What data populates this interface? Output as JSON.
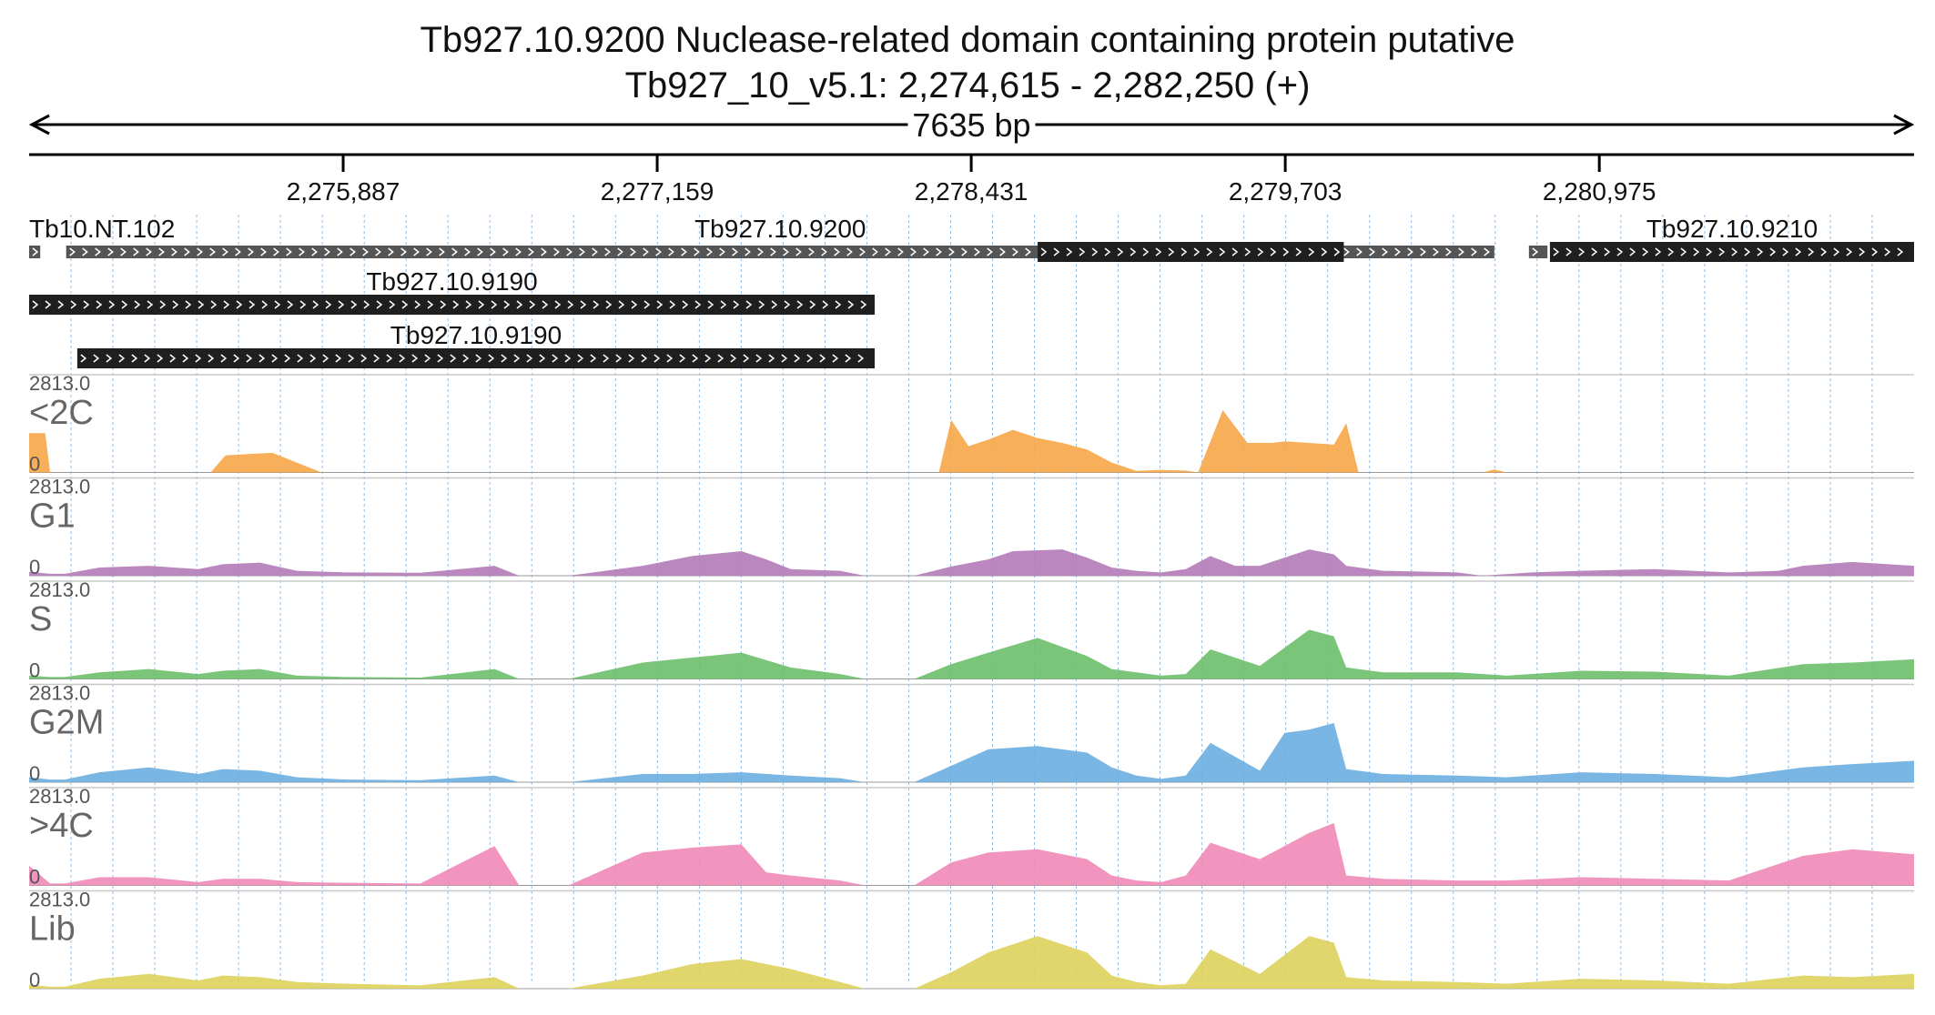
{
  "header": {
    "title": "Tb927.10.9200  Nuclease-related domain containing protein  putative",
    "location": "Tb927_10_v5.1: 2,274,615 - 2,282,250 (+)",
    "span_label": "7635 bp"
  },
  "colors": {
    "gene_fill": "#1f1f1f",
    "transcript_fill": "#555555",
    "grid": "#7fb2e0",
    "track_divider": "#c8c8c8"
  },
  "chart_data": {
    "type": "area",
    "xlim": [
      2274615,
      2282250
    ],
    "ylim": [
      0,
      2813.0
    ],
    "ruler_ticks": [
      {
        "position": 2275887,
        "label": "2,275,887"
      },
      {
        "position": 2277159,
        "label": "2,277,159"
      },
      {
        "position": 2278431,
        "label": "2,278,431"
      },
      {
        "position": 2279703,
        "label": "2,279,703"
      },
      {
        "position": 2280975,
        "label": "2,280,975"
      }
    ],
    "features": [
      {
        "name": "Tb10.NT.102",
        "row": 0,
        "start": 2274615,
        "end": 2274660,
        "style": "transcript"
      },
      {
        "name": "Tb927.10.9200",
        "row": 0,
        "start": 2274765,
        "end": 2280550,
        "style": "transcript"
      },
      {
        "name": "",
        "row": 0,
        "start": 2278700,
        "end": 2279940,
        "style": "gene"
      },
      {
        "name": "",
        "row": 0,
        "start": 2280690,
        "end": 2280765,
        "style": "transcript"
      },
      {
        "name": "Tb927.10.9210",
        "row": 0,
        "start": 2280775,
        "end": 2282250,
        "style": "gene"
      },
      {
        "name": "Tb927.10.9190",
        "row": 1,
        "start": 2274615,
        "end": 2278040,
        "style": "gene"
      },
      {
        "name": "Tb927.10.9190",
        "row": 2,
        "start": 2274810,
        "end": 2278040,
        "style": "gene"
      }
    ],
    "series": [
      {
        "name": "<2C",
        "color": "#f7a648",
        "max_label": "2813.0",
        "min_label": "0",
        "x": [
          2274615,
          2274680,
          2274700,
          2275350,
          2275410,
          2275500,
          2275600,
          2275800,
          2276000,
          2276500,
          2277000,
          2277500,
          2278000,
          2278300,
          2278350,
          2278420,
          2278500,
          2278600,
          2278700,
          2278800,
          2278900,
          2279000,
          2279100,
          2279200,
          2279300,
          2279350,
          2279450,
          2279550,
          2279650,
          2279700,
          2279800,
          2279900,
          2279950,
          2280000,
          2280200,
          2280500,
          2280550,
          2280600,
          2281000,
          2281500,
          2282000,
          2282250
        ],
        "y": [
          1200,
          1200,
          0,
          0,
          520,
          560,
          600,
          0,
          0,
          0,
          0,
          0,
          0,
          0,
          1600,
          800,
          1000,
          1300,
          1050,
          900,
          700,
          300,
          50,
          80,
          60,
          0,
          1900,
          900,
          900,
          950,
          900,
          850,
          1500,
          0,
          0,
          0,
          90,
          0,
          0,
          0,
          0,
          0
        ]
      },
      {
        "name": "G1",
        "color": "#b47ab8",
        "max_label": "2813.0",
        "min_label": "0",
        "x": [
          2274615,
          2274700,
          2274760,
          2274900,
          2275100,
          2275300,
          2275400,
          2275550,
          2275700,
          2275900,
          2276200,
          2276500,
          2276600,
          2276800,
          2277100,
          2277300,
          2277500,
          2277600,
          2277700,
          2277900,
          2278000,
          2278100,
          2278200,
          2278350,
          2278500,
          2278600,
          2278800,
          2278900,
          2279000,
          2279100,
          2279200,
          2279300,
          2279400,
          2279500,
          2279600,
          2279800,
          2279900,
          2279950,
          2280100,
          2280400,
          2280500,
          2280700,
          2280900,
          2281200,
          2281500,
          2281700,
          2281800,
          2282000,
          2282250
        ],
        "y": [
          120,
          60,
          60,
          250,
          300,
          200,
          350,
          400,
          150,
          100,
          90,
          300,
          0,
          0,
          300,
          600,
          750,
          500,
          200,
          150,
          0,
          0,
          0,
          280,
          500,
          750,
          800,
          550,
          250,
          150,
          100,
          200,
          600,
          300,
          300,
          800,
          650,
          300,
          150,
          100,
          0,
          100,
          150,
          200,
          100,
          150,
          300,
          420,
          300
        ]
      },
      {
        "name": "S",
        "color": "#6cbf6c",
        "max_label": "2813.0",
        "min_label": "0",
        "x": [
          2274615,
          2274700,
          2274760,
          2274900,
          2275100,
          2275300,
          2275400,
          2275550,
          2275700,
          2275900,
          2276200,
          2276500,
          2276600,
          2276800,
          2277100,
          2277300,
          2277500,
          2277700,
          2277900,
          2278000,
          2278100,
          2278200,
          2278350,
          2278500,
          2278700,
          2278900,
          2279000,
          2279100,
          2279200,
          2279300,
          2279400,
          2279600,
          2279800,
          2279900,
          2279950,
          2280100,
          2280400,
          2280600,
          2280900,
          2281200,
          2281500,
          2281800,
          2282000,
          2282250
        ],
        "y": [
          100,
          60,
          60,
          200,
          300,
          150,
          250,
          300,
          100,
          60,
          40,
          300,
          0,
          0,
          500,
          650,
          800,
          350,
          150,
          0,
          0,
          0,
          450,
          800,
          1250,
          700,
          300,
          200,
          100,
          150,
          900,
          400,
          1500,
          1300,
          350,
          200,
          200,
          100,
          250,
          220,
          100,
          450,
          500,
          600
        ]
      },
      {
        "name": "G2M",
        "color": "#6aaee0",
        "max_label": "2813.0",
        "min_label": "0",
        "x": [
          2274615,
          2274700,
          2274760,
          2274900,
          2275100,
          2275300,
          2275400,
          2275550,
          2275700,
          2275900,
          2276200,
          2276500,
          2276600,
          2276800,
          2277100,
          2277300,
          2277500,
          2277700,
          2277900,
          2278000,
          2278100,
          2278200,
          2278350,
          2278500,
          2278700,
          2278900,
          2279000,
          2279100,
          2279200,
          2279300,
          2279400,
          2279600,
          2279700,
          2279800,
          2279900,
          2279950,
          2280100,
          2280400,
          2280600,
          2280900,
          2281200,
          2281500,
          2281800,
          2282000,
          2282250
        ],
        "y": [
          150,
          80,
          80,
          300,
          450,
          250,
          400,
          350,
          150,
          80,
          60,
          200,
          0,
          0,
          250,
          250,
          300,
          200,
          120,
          0,
          0,
          0,
          500,
          1000,
          1100,
          900,
          450,
          200,
          100,
          200,
          1200,
          350,
          1500,
          1600,
          1800,
          400,
          250,
          200,
          150,
          300,
          250,
          150,
          450,
          550,
          650
        ]
      },
      {
        "name": ">4C",
        "color": "#f08ab8",
        "max_label": "2813.0",
        "min_label": "0",
        "x": [
          2274615,
          2274700,
          2274760,
          2274900,
          2275100,
          2275300,
          2275400,
          2275550,
          2275700,
          2275900,
          2276200,
          2276500,
          2276600,
          2276800,
          2277100,
          2277300,
          2277500,
          2277600,
          2277700,
          2277900,
          2278000,
          2278100,
          2278200,
          2278350,
          2278500,
          2278700,
          2278900,
          2279000,
          2279100,
          2279200,
          2279300,
          2279400,
          2279600,
          2279800,
          2279900,
          2279950,
          2280100,
          2280400,
          2280600,
          2280900,
          2281200,
          2281500,
          2281800,
          2282000,
          2282250
        ],
        "y": [
          600,
          60,
          60,
          250,
          250,
          100,
          200,
          200,
          100,
          80,
          60,
          1200,
          0,
          0,
          1000,
          1150,
          1250,
          400,
          300,
          150,
          0,
          0,
          0,
          700,
          1000,
          1100,
          800,
          300,
          150,
          100,
          300,
          1300,
          800,
          1600,
          1900,
          300,
          200,
          150,
          150,
          250,
          200,
          150,
          900,
          1100,
          950
        ]
      },
      {
        "name": "Lib",
        "color": "#ddd25c",
        "max_label": "2813.0",
        "min_label": "0",
        "x": [
          2274615,
          2274700,
          2274760,
          2274900,
          2275100,
          2275300,
          2275400,
          2275550,
          2275700,
          2275900,
          2276200,
          2276500,
          2276600,
          2276800,
          2277100,
          2277300,
          2277500,
          2277700,
          2277900,
          2278000,
          2278100,
          2278200,
          2278350,
          2278500,
          2278700,
          2278900,
          2279000,
          2279100,
          2279200,
          2279300,
          2279400,
          2279600,
          2279800,
          2279900,
          2279950,
          2280100,
          2280400,
          2280600,
          2280900,
          2281200,
          2281500,
          2281800,
          2282000,
          2282250
        ],
        "y": [
          120,
          60,
          60,
          300,
          450,
          250,
          400,
          350,
          200,
          150,
          100,
          350,
          0,
          0,
          400,
          750,
          900,
          600,
          200,
          0,
          0,
          0,
          500,
          1100,
          1600,
          1100,
          400,
          200,
          100,
          150,
          1200,
          450,
          1600,
          1400,
          350,
          250,
          200,
          150,
          300,
          250,
          150,
          400,
          350,
          450
        ]
      }
    ]
  }
}
